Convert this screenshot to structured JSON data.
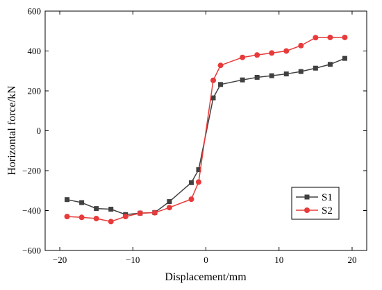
{
  "chart_data": {
    "type": "line",
    "xlabel": "Displacement/mm",
    "ylabel": "Horizontal force/kN",
    "xlim": [
      -22,
      22
    ],
    "ylim": [
      -600,
      600
    ],
    "x_ticks": [
      -20,
      -10,
      0,
      10,
      20
    ],
    "y_ticks": [
      -600,
      -400,
      -200,
      0,
      200,
      400,
      600
    ],
    "grid": false,
    "legend_position": "bottom-right",
    "series": [
      {
        "name": "S1",
        "color": "#404040",
        "marker": "square",
        "x": [
          -19,
          -17,
          -15,
          -13,
          -11,
          -9,
          -7,
          -5,
          -2,
          -1,
          1,
          2,
          5,
          7,
          9,
          11,
          13,
          15,
          17,
          19
        ],
        "y": [
          -345,
          -360,
          -390,
          -393,
          -420,
          -413,
          -410,
          -355,
          -260,
          -195,
          165,
          232,
          255,
          268,
          276,
          285,
          297,
          314,
          333,
          363
        ]
      },
      {
        "name": "S2",
        "color": "#e83a3a",
        "marker": "circle",
        "x": [
          -19,
          -17,
          -15,
          -13,
          -11,
          -9,
          -7,
          -5,
          -2,
          -1,
          1,
          2,
          5,
          7,
          9,
          11,
          13,
          15,
          17,
          19
        ],
        "y": [
          -430,
          -434,
          -440,
          -455,
          -430,
          -413,
          -411,
          -385,
          -343,
          -257,
          253,
          328,
          368,
          380,
          390,
          400,
          427,
          467,
          468,
          468
        ]
      }
    ]
  }
}
